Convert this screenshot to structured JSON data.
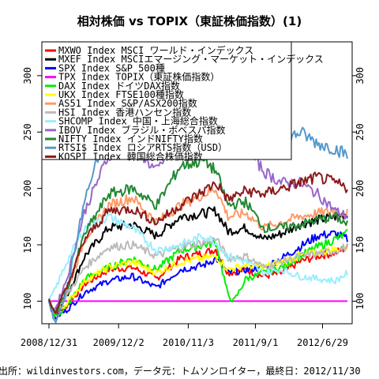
{
  "chart_data": {
    "type": "line",
    "title": "相対株価 vs TOPIX（東証株価指数）(1)",
    "footer": "出所：wildinvestors.com，データ元：トムソンロイター，最終日：2012/11/30",
    "x_ticks": [
      "2008/12/31",
      "2009/12/2",
      "2010/11/3",
      "2011/9/1",
      "2012/6/29"
    ],
    "x_tick_pos": [
      0,
      0.2333,
      0.4667,
      0.6917,
      0.9167
    ],
    "ylim": [
      80,
      330
    ],
    "y_ticks": [
      100,
      150,
      200,
      250,
      300
    ],
    "grid": false,
    "legend_position": "top-left",
    "series": [
      {
        "name": "MXWO Index MSCI ワールド・インデックス",
        "color": "#ff0000",
        "points": [
          [
            0,
            100
          ],
          [
            0.02,
            88
          ],
          [
            0.06,
            96
          ],
          [
            0.12,
            115
          ],
          [
            0.2,
            128
          ],
          [
            0.28,
            130
          ],
          [
            0.36,
            120
          ],
          [
            0.44,
            138
          ],
          [
            0.52,
            143
          ],
          [
            0.56,
            146
          ],
          [
            0.6,
            125
          ],
          [
            0.66,
            128
          ],
          [
            0.72,
            122
          ],
          [
            0.78,
            125
          ],
          [
            0.84,
            135
          ],
          [
            0.9,
            140
          ],
          [
            0.96,
            143
          ],
          [
            1,
            148
          ]
        ]
      },
      {
        "name": "MXEF Index MSCIエマージング・マーケット・インデックス",
        "color": "#000000",
        "points": [
          [
            0,
            100
          ],
          [
            0.02,
            88
          ],
          [
            0.06,
            105
          ],
          [
            0.12,
            140
          ],
          [
            0.2,
            165
          ],
          [
            0.28,
            168
          ],
          [
            0.36,
            158
          ],
          [
            0.44,
            175
          ],
          [
            0.52,
            178
          ],
          [
            0.56,
            180
          ],
          [
            0.6,
            162
          ],
          [
            0.66,
            165
          ],
          [
            0.72,
            155
          ],
          [
            0.78,
            160
          ],
          [
            0.84,
            168
          ],
          [
            0.9,
            172
          ],
          [
            0.96,
            175
          ],
          [
            1,
            178
          ]
        ]
      },
      {
        "name": "SPX Index S&P 500種",
        "color": "#0000ff",
        "points": [
          [
            0,
            100
          ],
          [
            0.02,
            85
          ],
          [
            0.06,
            92
          ],
          [
            0.12,
            108
          ],
          [
            0.2,
            118
          ],
          [
            0.28,
            122
          ],
          [
            0.36,
            112
          ],
          [
            0.44,
            128
          ],
          [
            0.52,
            132
          ],
          [
            0.56,
            138
          ],
          [
            0.6,
            125
          ],
          [
            0.66,
            128
          ],
          [
            0.72,
            130
          ],
          [
            0.78,
            138
          ],
          [
            0.84,
            148
          ],
          [
            0.9,
            158
          ],
          [
            0.96,
            160
          ],
          [
            1,
            155
          ]
        ]
      },
      {
        "name": "TPX Index TOPIX（東証株価指数）",
        "color": "#ff00ff",
        "points": [
          [
            0,
            100
          ],
          [
            1,
            100
          ]
        ]
      },
      {
        "name": "DAX Index ドイツDAX指数",
        "color": "#00ee00",
        "points": [
          [
            0,
            100
          ],
          [
            0.02,
            86
          ],
          [
            0.06,
            95
          ],
          [
            0.12,
            120
          ],
          [
            0.2,
            130
          ],
          [
            0.28,
            138
          ],
          [
            0.36,
            128
          ],
          [
            0.44,
            145
          ],
          [
            0.52,
            150
          ],
          [
            0.56,
            152
          ],
          [
            0.6,
            105
          ],
          [
            0.62,
            100
          ],
          [
            0.66,
            120
          ],
          [
            0.72,
            125
          ],
          [
            0.78,
            130
          ],
          [
            0.84,
            140
          ],
          [
            0.9,
            148
          ],
          [
            0.96,
            155
          ],
          [
            1,
            160
          ]
        ]
      },
      {
        "name": "UKX Index FTSE100種指数",
        "color": "#ffff00",
        "points": [
          [
            0,
            100
          ],
          [
            0.02,
            90
          ],
          [
            0.06,
            98
          ],
          [
            0.12,
            118
          ],
          [
            0.2,
            130
          ],
          [
            0.28,
            135
          ],
          [
            0.36,
            125
          ],
          [
            0.44,
            135
          ],
          [
            0.52,
            138
          ],
          [
            0.56,
            140
          ],
          [
            0.6,
            128
          ],
          [
            0.66,
            132
          ],
          [
            0.72,
            130
          ],
          [
            0.78,
            135
          ],
          [
            0.84,
            140
          ],
          [
            0.9,
            143
          ],
          [
            0.96,
            146
          ],
          [
            1,
            148
          ]
        ]
      },
      {
        "name": "AS51 Index S&P/ASX200指数",
        "color": "#ff9966",
        "points": [
          [
            0,
            100
          ],
          [
            0.02,
            90
          ],
          [
            0.06,
            108
          ],
          [
            0.12,
            155
          ],
          [
            0.2,
            185
          ],
          [
            0.28,
            192
          ],
          [
            0.36,
            170
          ],
          [
            0.44,
            185
          ],
          [
            0.52,
            195
          ],
          [
            0.56,
            200
          ],
          [
            0.6,
            175
          ],
          [
            0.66,
            178
          ],
          [
            0.72,
            165
          ],
          [
            0.78,
            170
          ],
          [
            0.84,
            175
          ],
          [
            0.9,
            178
          ],
          [
            0.96,
            180
          ],
          [
            1,
            178
          ]
        ]
      },
      {
        "name": "HSI Index 香港ハンセン指数",
        "color": "#bbbbbb",
        "points": [
          [
            0,
            100
          ],
          [
            0.02,
            90
          ],
          [
            0.06,
            105
          ],
          [
            0.12,
            130
          ],
          [
            0.2,
            148
          ],
          [
            0.28,
            150
          ],
          [
            0.36,
            140
          ],
          [
            0.44,
            148
          ],
          [
            0.52,
            152
          ],
          [
            0.56,
            155
          ],
          [
            0.6,
            138
          ],
          [
            0.66,
            140
          ],
          [
            0.72,
            130
          ],
          [
            0.78,
            135
          ],
          [
            0.84,
            140
          ],
          [
            0.9,
            142
          ],
          [
            0.96,
            145
          ],
          [
            1,
            148
          ]
        ]
      },
      {
        "name": "SHCOMP Index 中国・上海総合指数",
        "color": "#99eeff",
        "points": [
          [
            0,
            100
          ],
          [
            0.02,
            110
          ],
          [
            0.06,
            135
          ],
          [
            0.12,
            165
          ],
          [
            0.2,
            175
          ],
          [
            0.28,
            165
          ],
          [
            0.36,
            145
          ],
          [
            0.44,
            150
          ],
          [
            0.52,
            158
          ],
          [
            0.56,
            152
          ],
          [
            0.6,
            140
          ],
          [
            0.66,
            135
          ],
          [
            0.72,
            125
          ],
          [
            0.78,
            128
          ],
          [
            0.84,
            122
          ],
          [
            0.9,
            120
          ],
          [
            0.96,
            118
          ],
          [
            1,
            125
          ]
        ]
      },
      {
        "name": "IBOV Index ブラジル・ボベスパ指数",
        "color": "#9966cc",
        "points": [
          [
            0,
            100
          ],
          [
            0.02,
            92
          ],
          [
            0.06,
            120
          ],
          [
            0.12,
            180
          ],
          [
            0.2,
            230
          ],
          [
            0.28,
            240
          ],
          [
            0.36,
            215
          ],
          [
            0.44,
            248
          ],
          [
            0.52,
            255
          ],
          [
            0.56,
            260
          ],
          [
            0.6,
            230
          ],
          [
            0.66,
            238
          ],
          [
            0.72,
            215
          ],
          [
            0.78,
            205
          ],
          [
            0.84,
            205
          ],
          [
            0.9,
            195
          ],
          [
            0.96,
            180
          ],
          [
            1,
            175
          ]
        ]
      },
      {
        "name": "NIFTY Index インドNIFTY指数",
        "color": "#228833",
        "points": [
          [
            0,
            100
          ],
          [
            0.02,
            88
          ],
          [
            0.06,
            110
          ],
          [
            0.12,
            160
          ],
          [
            0.2,
            195
          ],
          [
            0.28,
            200
          ],
          [
            0.36,
            185
          ],
          [
            0.44,
            220
          ],
          [
            0.52,
            225
          ],
          [
            0.56,
            215
          ],
          [
            0.6,
            185
          ],
          [
            0.66,
            188
          ],
          [
            0.72,
            165
          ],
          [
            0.78,
            165
          ],
          [
            0.84,
            168
          ],
          [
            0.9,
            172
          ],
          [
            0.96,
            175
          ],
          [
            1,
            168
          ]
        ]
      },
      {
        "name": "RTSI$ Index ロシアRTS指数（USD）",
        "color": "#5599cc",
        "points": [
          [
            0,
            100
          ],
          [
            0.02,
            80
          ],
          [
            0.06,
            110
          ],
          [
            0.12,
            190
          ],
          [
            0.2,
            255
          ],
          [
            0.28,
            245
          ],
          [
            0.36,
            230
          ],
          [
            0.44,
            275
          ],
          [
            0.5,
            265
          ],
          [
            0.52,
            310
          ],
          [
            0.55,
            295
          ],
          [
            0.58,
            300
          ],
          [
            0.6,
            255
          ],
          [
            0.66,
            265
          ],
          [
            0.72,
            235
          ],
          [
            0.78,
            240
          ],
          [
            0.84,
            250
          ],
          [
            0.9,
            240
          ],
          [
            0.96,
            235
          ],
          [
            1,
            230
          ]
        ]
      },
      {
        "name": "KOSPI Index 韓国総合株価指数",
        "color": "#8b1a1a",
        "points": [
          [
            0,
            100
          ],
          [
            0.02,
            90
          ],
          [
            0.06,
            112
          ],
          [
            0.12,
            155
          ],
          [
            0.2,
            180
          ],
          [
            0.28,
            182
          ],
          [
            0.36,
            170
          ],
          [
            0.44,
            185
          ],
          [
            0.52,
            198
          ],
          [
            0.56,
            205
          ],
          [
            0.6,
            190
          ],
          [
            0.66,
            198
          ],
          [
            0.72,
            195
          ],
          [
            0.78,
            200
          ],
          [
            0.84,
            205
          ],
          [
            0.9,
            210
          ],
          [
            0.96,
            205
          ],
          [
            1,
            200
          ]
        ]
      }
    ]
  }
}
